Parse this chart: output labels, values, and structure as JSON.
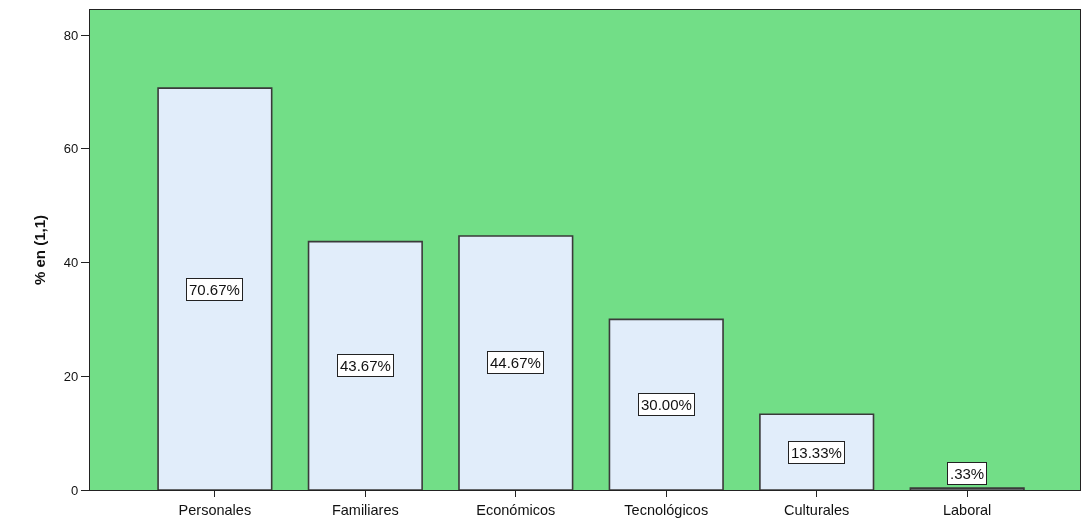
{
  "chart_data": {
    "type": "bar",
    "categories": [
      "Personales",
      "Familiares",
      "Económicos",
      "Tecnológicos",
      "Culturales",
      "Laboral"
    ],
    "values": [
      70.67,
      43.67,
      44.67,
      30.0,
      13.33,
      0.33
    ],
    "value_labels": [
      "70.67%",
      "43.67%",
      "44.67%",
      "30.00%",
      "13.33%",
      ".33%"
    ],
    "color": "#e1edfa",
    "ylabel": "% en (1,1)",
    "ylim": [
      0,
      84.4
    ],
    "yticks": [
      0,
      20,
      40,
      60,
      80
    ]
  }
}
